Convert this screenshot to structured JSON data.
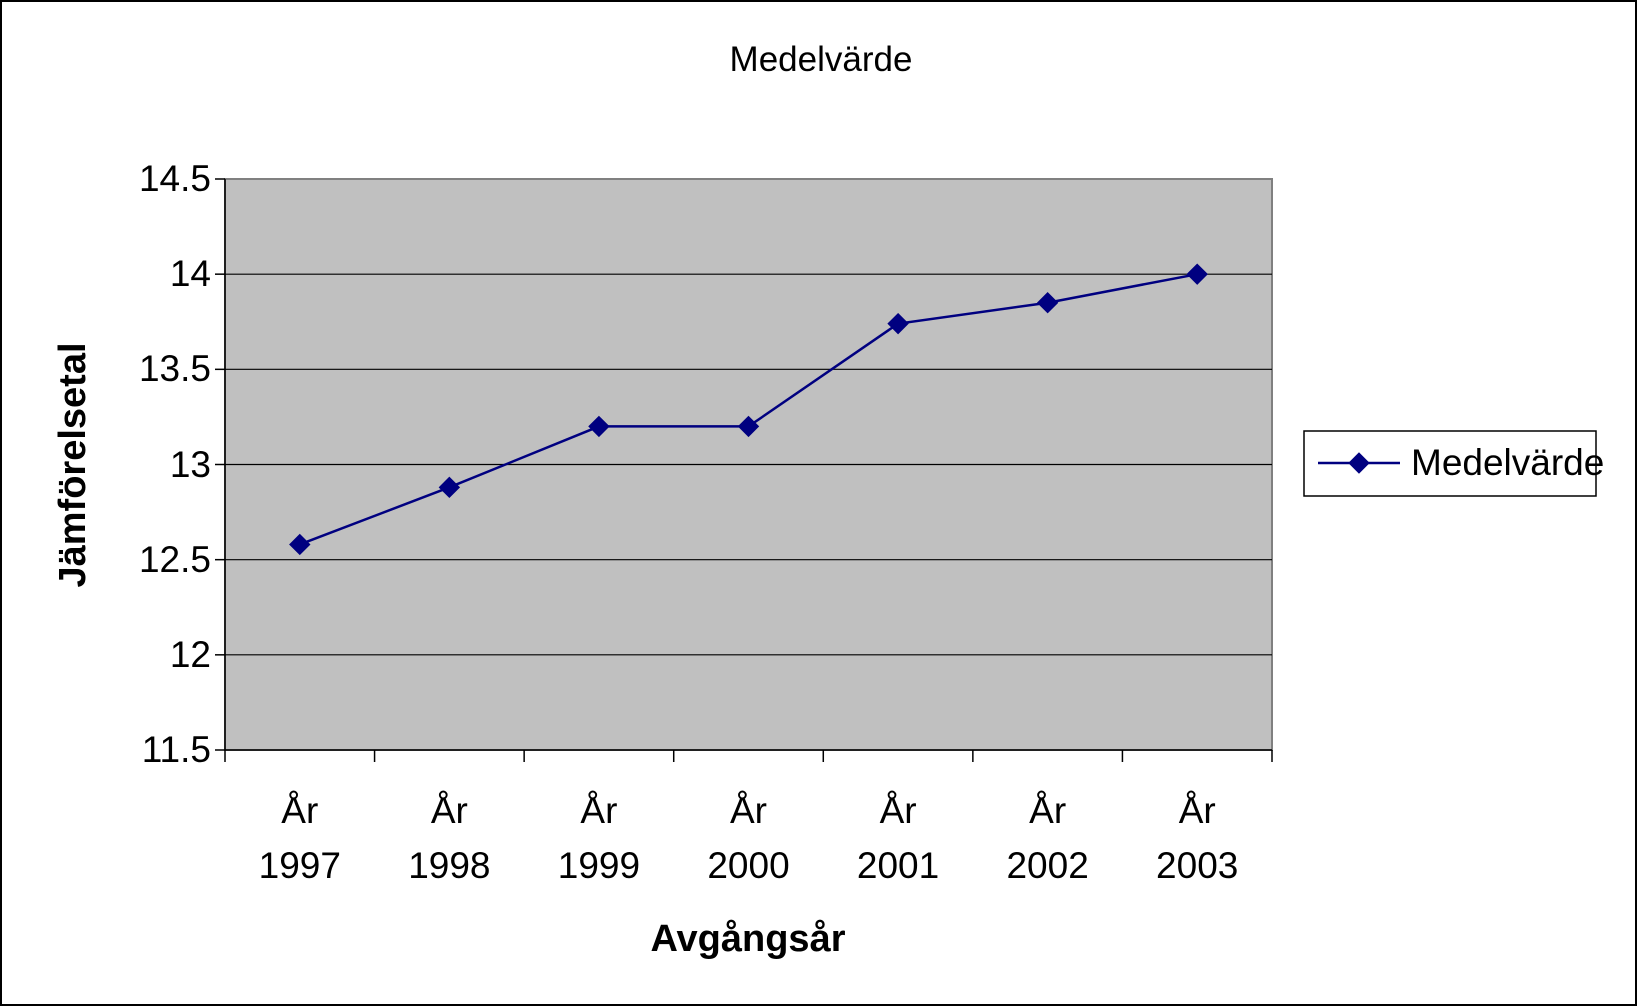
{
  "chart_data": {
    "type": "line",
    "title": "Medelvärde",
    "x_label": "Avgångsår",
    "y_label": "Jämförelsetal",
    "categories": [
      "År 1997",
      "År 1998",
      "År 1999",
      "År 2000",
      "År 2001",
      "År 2002",
      "År 2003"
    ],
    "series": [
      {
        "name": "Medelvärde",
        "color": "#000080",
        "values": [
          12.58,
          12.88,
          13.2,
          13.2,
          13.74,
          13.85,
          14.0
        ]
      }
    ],
    "ylim": [
      11.5,
      14.5
    ],
    "yticks": [
      11.5,
      12,
      12.5,
      13,
      13.5,
      14,
      14.5
    ],
    "grid": true,
    "legend": "right"
  }
}
